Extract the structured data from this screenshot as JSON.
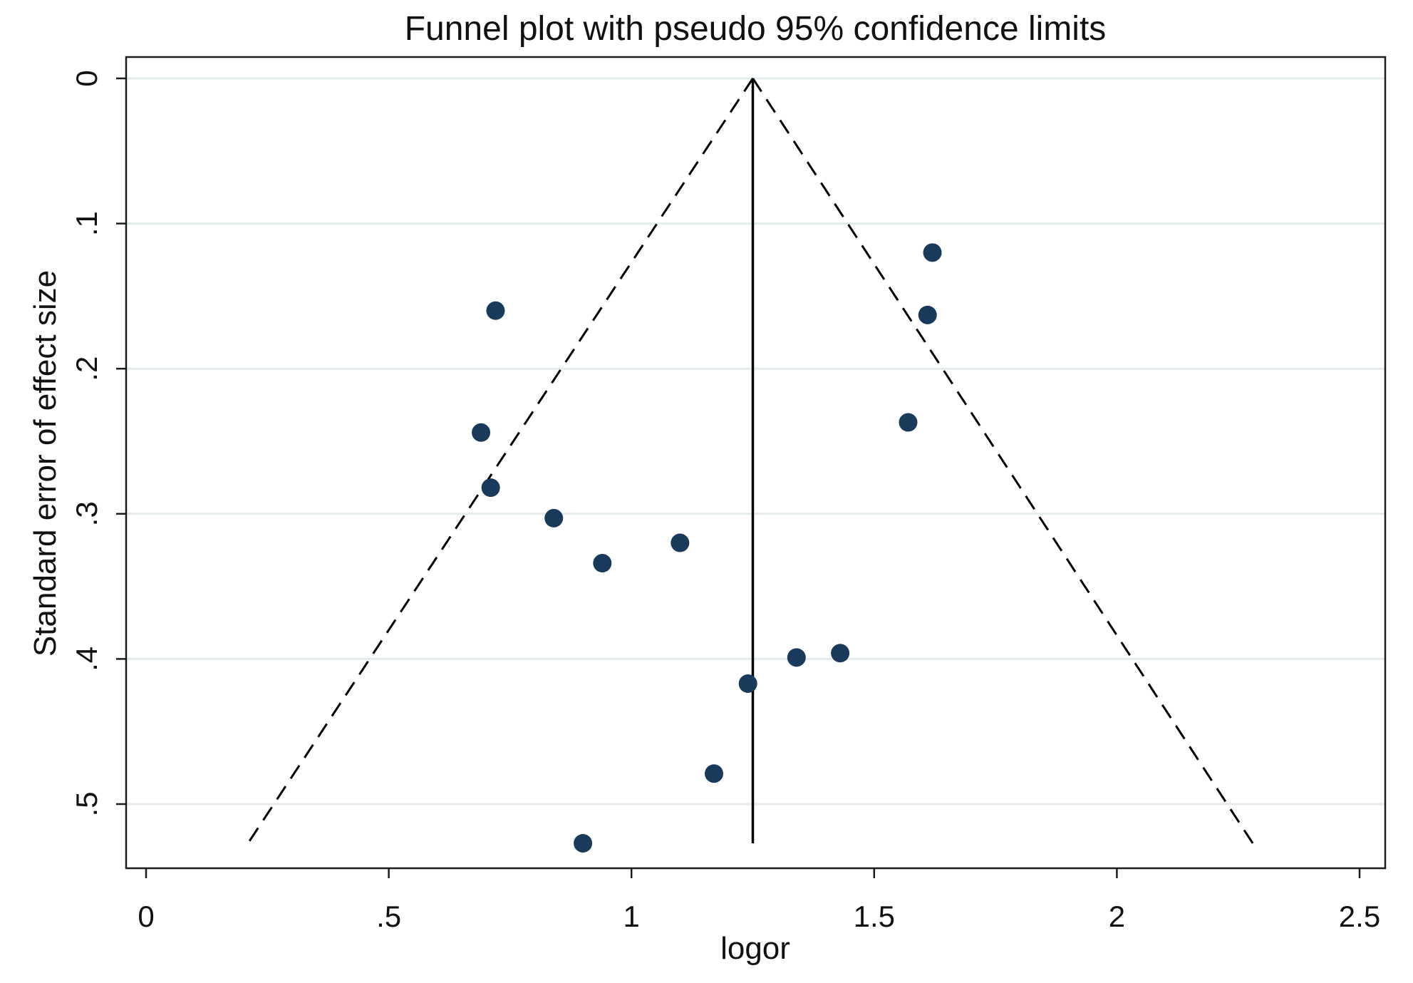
{
  "chart_data": {
    "type": "scatter",
    "title": "Funnel plot with pseudo 95% confidence limits",
    "xlabel": "logor",
    "ylabel": "Standard error of effect size",
    "xlim": [
      0,
      2.5
    ],
    "ylim": [
      0,
      0.5
    ],
    "y_axis_reversed": true,
    "y_axis_tick_labels_rotated": true,
    "grid": "horizontal",
    "x_ticks": [
      {
        "value": 0,
        "label": "0"
      },
      {
        "value": 0.5,
        "label": ".5"
      },
      {
        "value": 1,
        "label": "1"
      },
      {
        "value": 1.5,
        "label": "1.5"
      },
      {
        "value": 2,
        "label": "2"
      },
      {
        "value": 2.5,
        "label": "2.5"
      }
    ],
    "y_ticks": [
      {
        "value": 0,
        "label": "0"
      },
      {
        "value": 0.1,
        "label": ".1"
      },
      {
        "value": 0.2,
        "label": ".2"
      },
      {
        "value": 0.3,
        "label": ".3"
      },
      {
        "value": 0.4,
        "label": ".4"
      },
      {
        "value": 0.5,
        "label": ".5"
      }
    ],
    "points": [
      {
        "x": 1.62,
        "y": 0.12
      },
      {
        "x": 0.72,
        "y": 0.16
      },
      {
        "x": 1.61,
        "y": 0.163
      },
      {
        "x": 1.57,
        "y": 0.237
      },
      {
        "x": 0.69,
        "y": 0.244
      },
      {
        "x": 0.71,
        "y": 0.282
      },
      {
        "x": 0.84,
        "y": 0.303
      },
      {
        "x": 1.1,
        "y": 0.32
      },
      {
        "x": 0.94,
        "y": 0.334
      },
      {
        "x": 1.43,
        "y": 0.396
      },
      {
        "x": 1.34,
        "y": 0.399
      },
      {
        "x": 1.24,
        "y": 0.417
      },
      {
        "x": 1.17,
        "y": 0.479
      },
      {
        "x": 0.9,
        "y": 0.527
      }
    ],
    "pooled_estimate": {
      "x": 1.25,
      "se_max": 0.527
    },
    "confidence_limits": {
      "apex_x": 1.25,
      "lower_x_at_se_max": 0.21,
      "upper_x_at_se_max": 2.28,
      "se_max": 0.527
    },
    "colors": {
      "point": "#1a3a5c",
      "grid": "#e3ece9",
      "line": "#000000",
      "plot_border": "#1c1c1c"
    }
  }
}
